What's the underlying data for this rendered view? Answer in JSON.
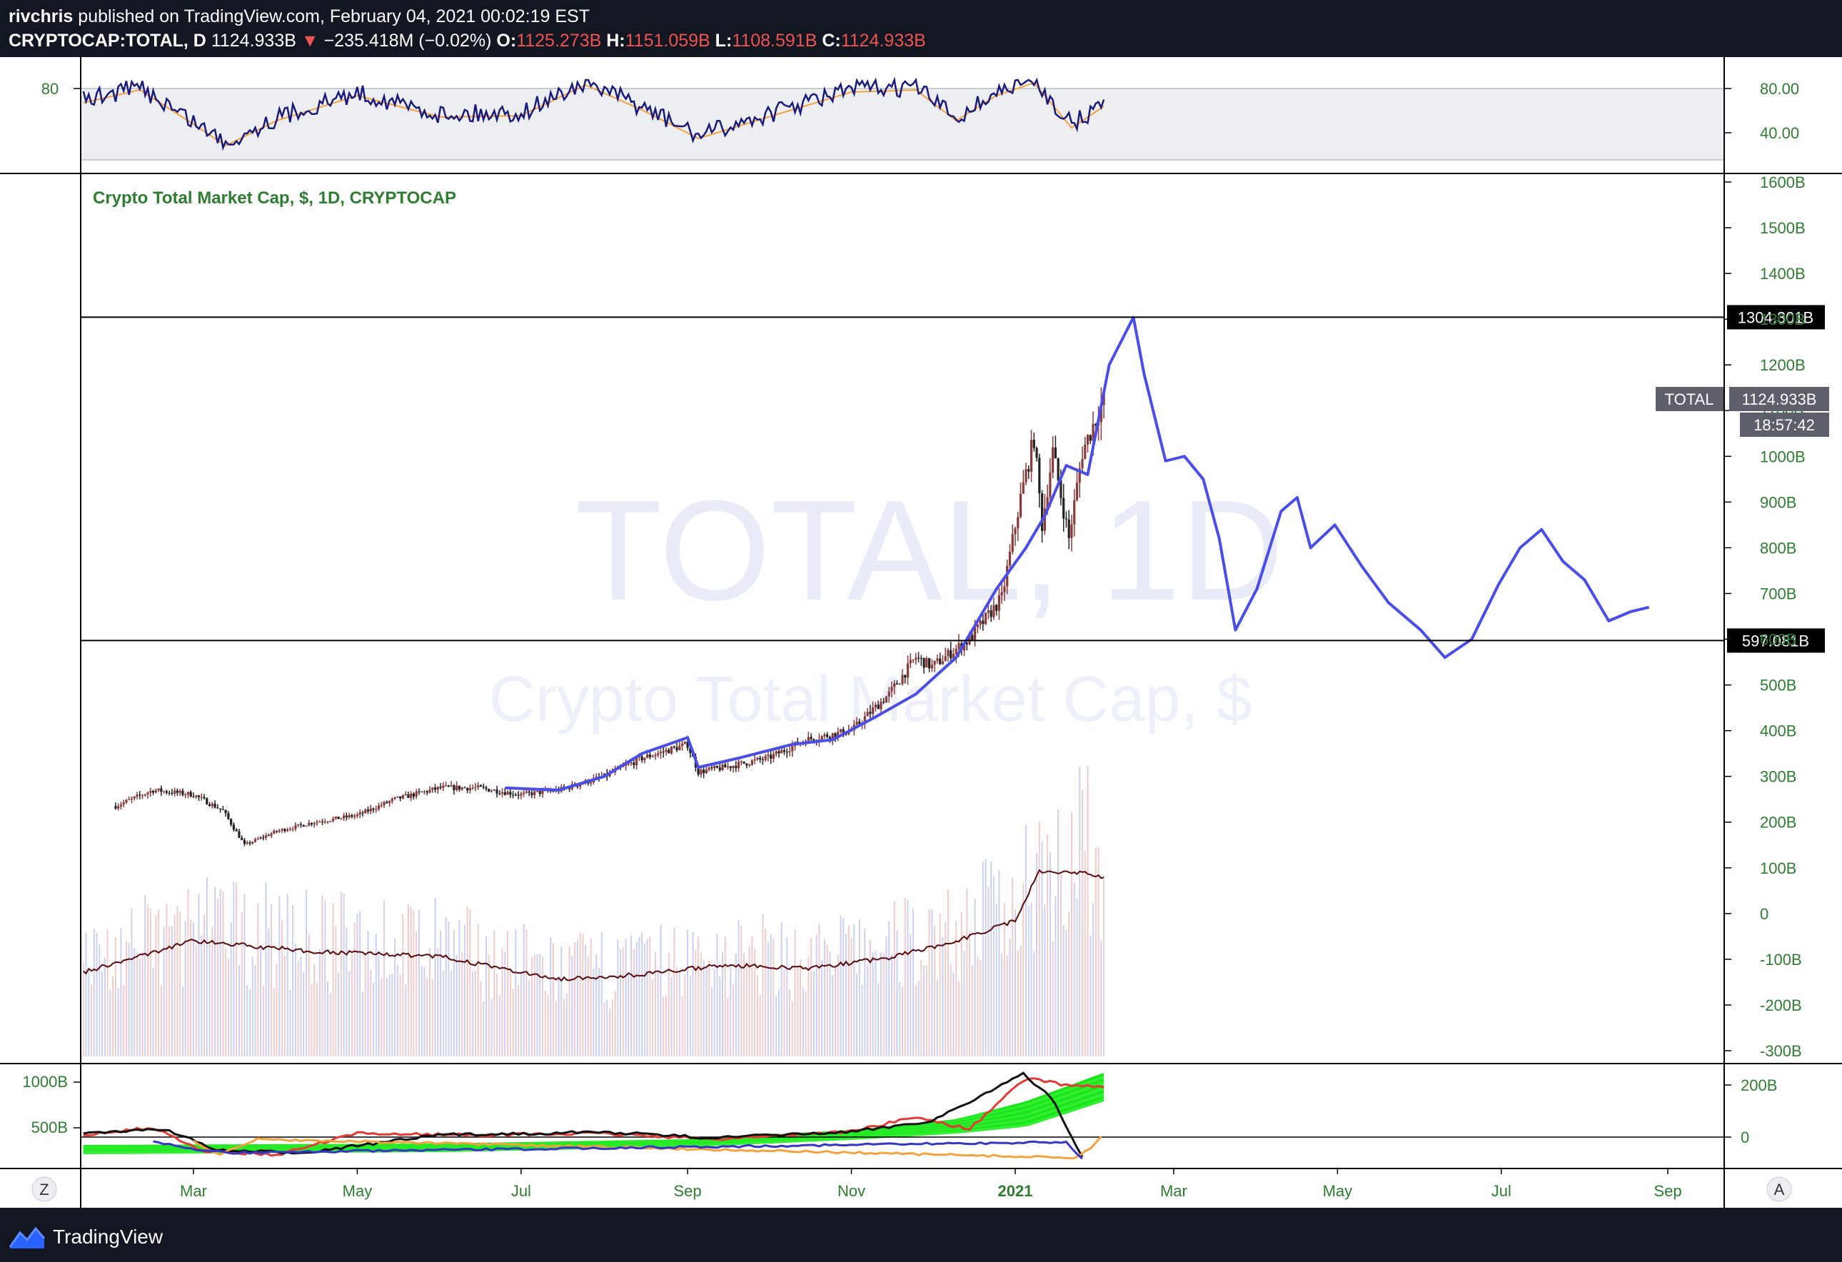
{
  "header": {
    "author": "rivchris",
    "published": "published on TradingView.com, February 04, 2021 00:02:19 EST",
    "symbol": "CRYPTOCAP:TOTAL, D",
    "last": "1124.933B",
    "change_arrow": "▼",
    "change": "−235.418M (−0.02%)",
    "o_label": "O:",
    "o": "1125.273B",
    "h_label": "H:",
    "h": "1151.059B",
    "l_label": "L:",
    "l": "1108.591B",
    "c_label": "C:",
    "c": "1124.933B"
  },
  "main_pane": {
    "legend": "Crypto Total Market Cap, $, 1D, CRYPTOCAP",
    "watermark_symbol": "TOTAL, 1D",
    "watermark_name": "Crypto Total Market Cap, $",
    "hlines": [
      {
        "value": 1304.301,
        "label": "1304.301B"
      },
      {
        "value": 597.081,
        "label": "597.081B"
      }
    ],
    "price_tag": {
      "name": "TOTAL",
      "value": "1124.933B",
      "countdown": "18:57:42"
    }
  },
  "rsi_pane": {
    "left_label": "80",
    "right_ticks": [
      "80.00",
      "40.00"
    ],
    "band": [
      30,
      80
    ]
  },
  "osc_pane": {
    "left_ticks": [
      "1000B",
      "500B"
    ],
    "right_ticks": [
      "200B",
      "0"
    ]
  },
  "time_axis": {
    "labels": [
      "Mar",
      "May",
      "Jul",
      "Sep",
      "Nov",
      "2021",
      "Mar",
      "May",
      "Jul",
      "Sep"
    ],
    "left_button": "Z",
    "right_button": "A"
  },
  "footer": {
    "brand": "TradingView"
  },
  "colors": {
    "background": "#131722",
    "axis_text": "#2e7d32",
    "projection": "#4a4ee8",
    "candle_up": "#8b3a3a",
    "candle_down": "#222222",
    "volume_ma": "#5a0a0a",
    "rsi_line": "#1a1a7a",
    "rsi_signal": "#f4a23c",
    "osc_fill": "#19e619",
    "osc_red": "#e53935",
    "hline": "#000000"
  },
  "chart_data": {
    "type": "line",
    "title": "Crypto Total Market Cap, $, 1D, CRYPTOCAP",
    "ylabel": "",
    "ylim": [
      -300,
      1600
    ],
    "y_ticks": [
      "1600B",
      "1500B",
      "1400B",
      "1300B",
      "1200B",
      "1100B",
      "1000B",
      "900B",
      "800B",
      "700B",
      "600B",
      "500B",
      "400B",
      "300B",
      "200B",
      "100B",
      "0",
      "-100B",
      "-200B",
      "-300B"
    ],
    "series": [
      {
        "name": "",
        "x": [
          "2020-02-01",
          "2020-02-15",
          "2020-03-01",
          "2020-03-12",
          "2020-03-20",
          "2020-04-01",
          "2020-04-15",
          "2020-05-01",
          "2020-05-15",
          "2020-06-01",
          "2020-06-15",
          "2020-07-01",
          "2020-07-15",
          "2020-08-01",
          "2020-08-15",
          "2020-09-01",
          "2020-09-05",
          "2020-09-15",
          "2020-10-01",
          "2020-10-15",
          "2020-11-01",
          "2020-11-15",
          "2020-11-25",
          "2020-12-01",
          "2020-12-15",
          "2020-12-27",
          "2021-01-03",
          "2021-01-08",
          "2021-01-11",
          "2021-01-15",
          "2021-01-21",
          "2021-01-26",
          "2021-02-03"
        ],
        "values": [
          235,
          270,
          260,
          225,
          150,
          180,
          200,
          215,
          250,
          275,
          275,
          260,
          270,
          300,
          340,
          370,
          310,
          320,
          340,
          380,
          400,
          480,
          560,
          540,
          600,
          690,
          910,
          1040,
          850,
          1010,
          820,
          1010,
          1125
        ]
      },
      {
        "name": "",
        "x": [
          "2020-06-25",
          "2020-07-15",
          "2020-08-01",
          "2020-08-15",
          "2020-09-01",
          "2020-09-05",
          "2020-09-20",
          "2020-10-10",
          "2020-10-25",
          "2020-11-10",
          "2020-11-25",
          "2020-12-10",
          "2020-12-25",
          "2021-01-05",
          "2021-01-12",
          "2021-01-20",
          "2021-01-28",
          "2021-02-05",
          "2021-02-14",
          "2021-02-18",
          "2021-02-26",
          "2021-03-05",
          "2021-03-12",
          "2021-03-18",
          "2021-03-24",
          "2021-04-01",
          "2021-04-10",
          "2021-04-16",
          "2021-04-21",
          "2021-04-30",
          "2021-05-10",
          "2021-05-20",
          "2021-06-01",
          "2021-06-10",
          "2021-06-20",
          "2021-06-30",
          "2021-07-08",
          "2021-07-16",
          "2021-07-24",
          "2021-08-01",
          "2021-08-10",
          "2021-08-18",
          "2021-08-25"
        ],
        "values": [
          275,
          270,
          300,
          350,
          385,
          320,
          340,
          370,
          380,
          430,
          480,
          560,
          710,
          800,
          870,
          980,
          960,
          1200,
          1304,
          1180,
          990,
          1000,
          950,
          820,
          620,
          710,
          880,
          910,
          800,
          850,
          760,
          680,
          620,
          560,
          600,
          720,
          800,
          840,
          770,
          730,
          640,
          660,
          670
        ]
      }
    ]
  }
}
